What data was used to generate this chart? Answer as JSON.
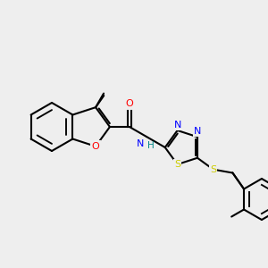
{
  "bg_color": "#eeeeee",
  "bond_color": "#000000",
  "bond_lw": 1.5,
  "atom_colors": {
    "O": "#ff0000",
    "N": "#0000ff",
    "S": "#cccc00",
    "H": "#008080",
    "C": "#000000"
  },
  "font_size": 7.5
}
